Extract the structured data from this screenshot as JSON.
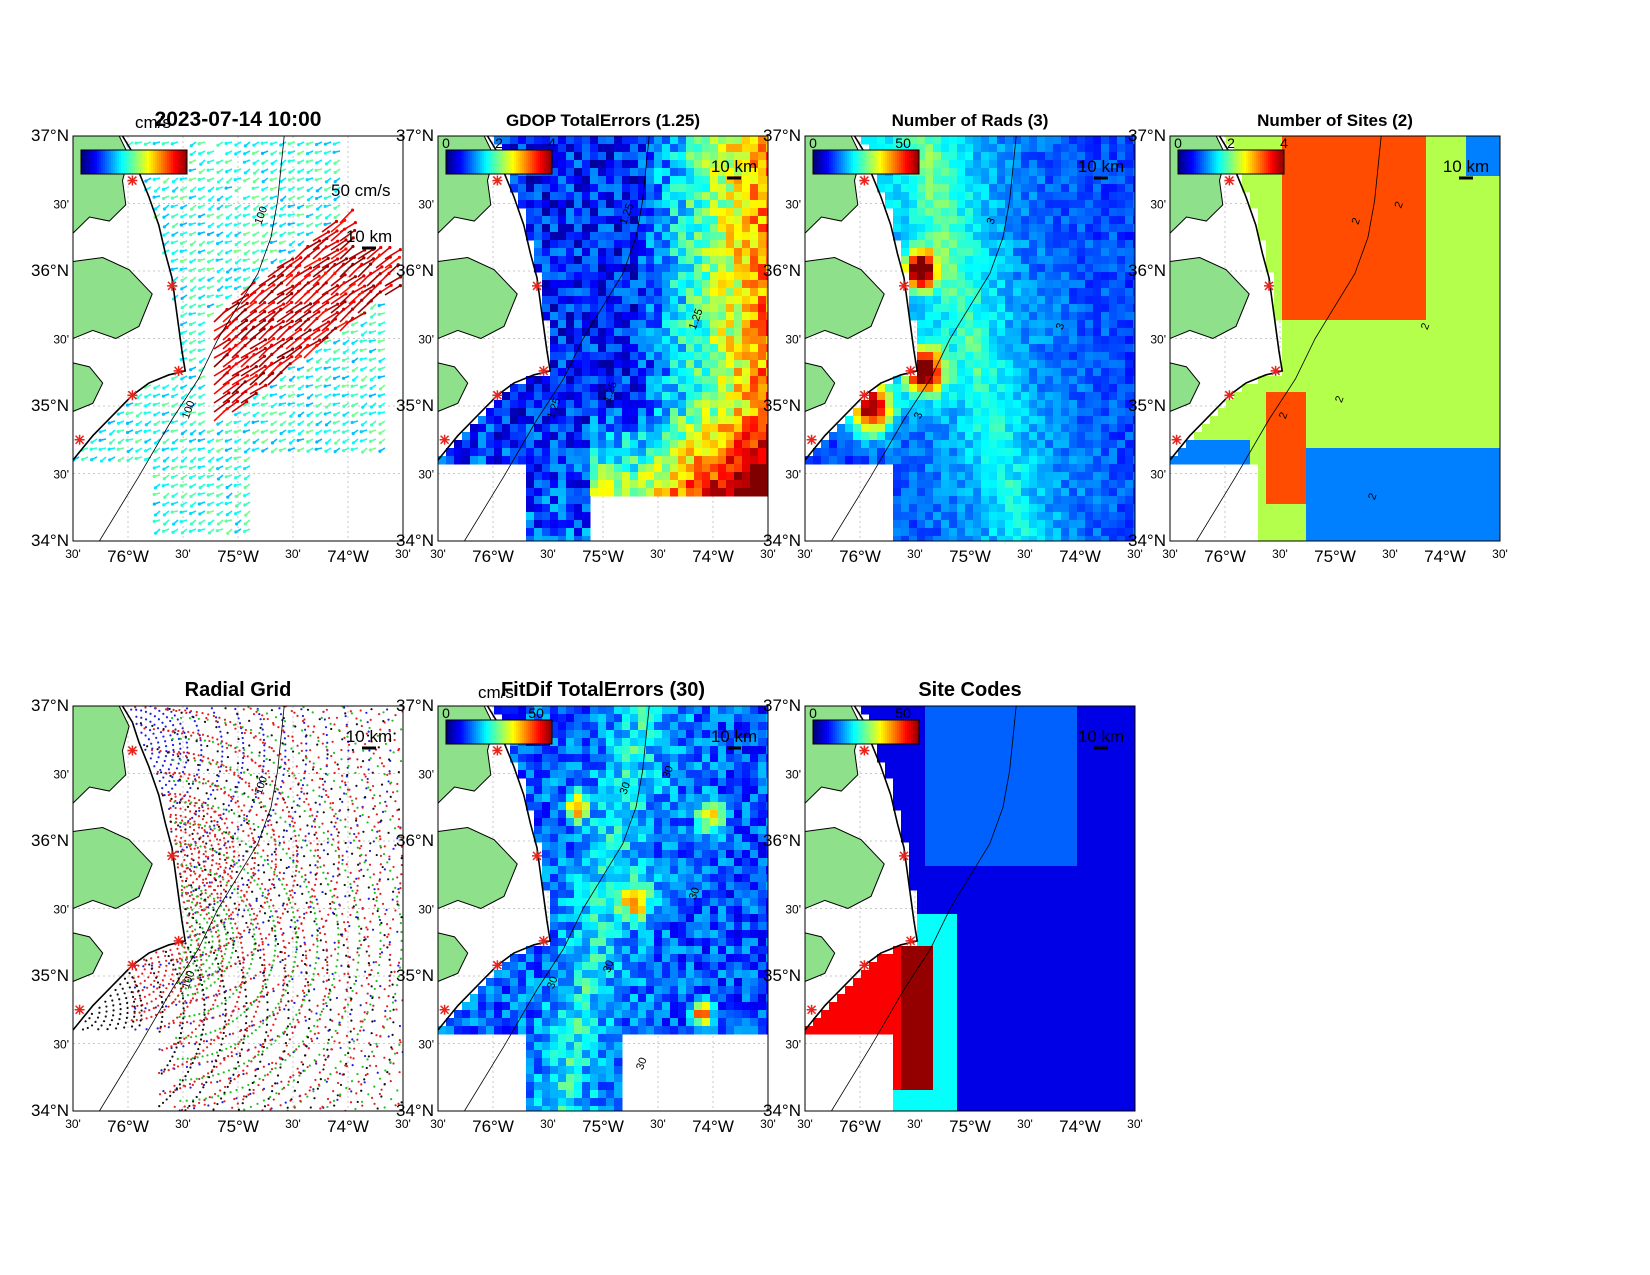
{
  "colors": {
    "land": "#8fe08a",
    "coast": "#000000",
    "site_marker": "#e8241c",
    "grid": "#c8c8c8"
  },
  "axes": {
    "lat_labels": [
      "37°N",
      "30'",
      "36°N",
      "30'",
      "35°N",
      "30'",
      "34°N"
    ],
    "lon_labels": [
      "30'",
      "76°W",
      "30'",
      "75°W",
      "30'",
      "74°W",
      "30'"
    ]
  },
  "scale_bar_label": "10 km",
  "panels": [
    {
      "id": "vectors",
      "title": "2023-07-14 10:00",
      "colorbar": {
        "unit": "cm/s",
        "ticks": []
      },
      "vector_scale_label": "50 cm/s",
      "field": "vectors",
      "contour_labels": [
        "100",
        "100"
      ]
    },
    {
      "id": "gdop",
      "title": "GDOP TotalErrors (1.25)",
      "colorbar": {
        "unit": "",
        "ticks": [
          "0",
          "2",
          "4"
        ]
      },
      "field": "gdop",
      "contour_labels": [
        "1.25",
        "1.25",
        "1.25",
        "1.25"
      ]
    },
    {
      "id": "nrads",
      "title": "Number of Rads (3)",
      "colorbar": {
        "unit": "",
        "ticks": [
          "0",
          "50"
        ]
      },
      "field": "nrads",
      "contour_labels": [
        "3",
        "3",
        "3"
      ]
    },
    {
      "id": "nsites",
      "title": "Number of Sites (2)",
      "colorbar": {
        "unit": "",
        "ticks": [
          "0",
          "2",
          "4"
        ]
      },
      "field": "nsites",
      "contour_labels": [
        "2",
        "2",
        "2",
        "2",
        "2",
        "2"
      ]
    },
    {
      "id": "radial",
      "title": "Radial Grid",
      "colorbar": null,
      "field": "radial",
      "contour_labels": [
        "100",
        "100"
      ]
    },
    {
      "id": "fitdif",
      "title": "FitDif TotalErrors (30)",
      "colorbar": {
        "unit": "cm/s",
        "ticks": [
          "0",
          "50"
        ]
      },
      "field": "fitdif",
      "contour_labels": [
        "30",
        "30",
        "30",
        "30",
        "30",
        "30"
      ]
    },
    {
      "id": "sitecodes",
      "title": "Site Codes",
      "colorbar": {
        "unit": "",
        "ticks": [
          "0",
          "50"
        ]
      },
      "field": "sitecodes",
      "contour_labels": []
    }
  ]
}
